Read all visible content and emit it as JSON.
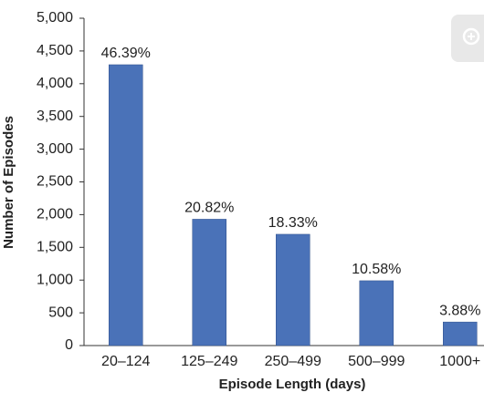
{
  "chart_data": {
    "type": "bar",
    "x_label": "Episode Length (days)",
    "y_label": "Number of Episodes",
    "categories": [
      "20–124",
      "125–249",
      "250–499",
      "500–999",
      "1000+"
    ],
    "values": [
      4290,
      1930,
      1700,
      990,
      360
    ],
    "percent_labels": [
      "46.39%",
      "20.82%",
      "18.33%",
      "10.58%",
      "3.88%"
    ],
    "color": "#4a72b8",
    "ylim": [
      0,
      5000
    ],
    "yticks": [
      0,
      500,
      {
        "value": 1000,
        "label": "1,000"
      },
      {
        "value": 1500,
        "label": "1,500"
      },
      {
        "value": 2000,
        "label": "2,000"
      },
      {
        "value": 2500,
        "label": "2,500"
      },
      {
        "value": 3000,
        "label": "3,000"
      },
      {
        "value": 3500,
        "label": "3,500"
      },
      {
        "value": 4000,
        "label": "4,000"
      },
      {
        "value": 4500,
        "label": "4,500"
      },
      {
        "value": 5000,
        "label": "5,000"
      }
    ],
    "grid": false
  }
}
